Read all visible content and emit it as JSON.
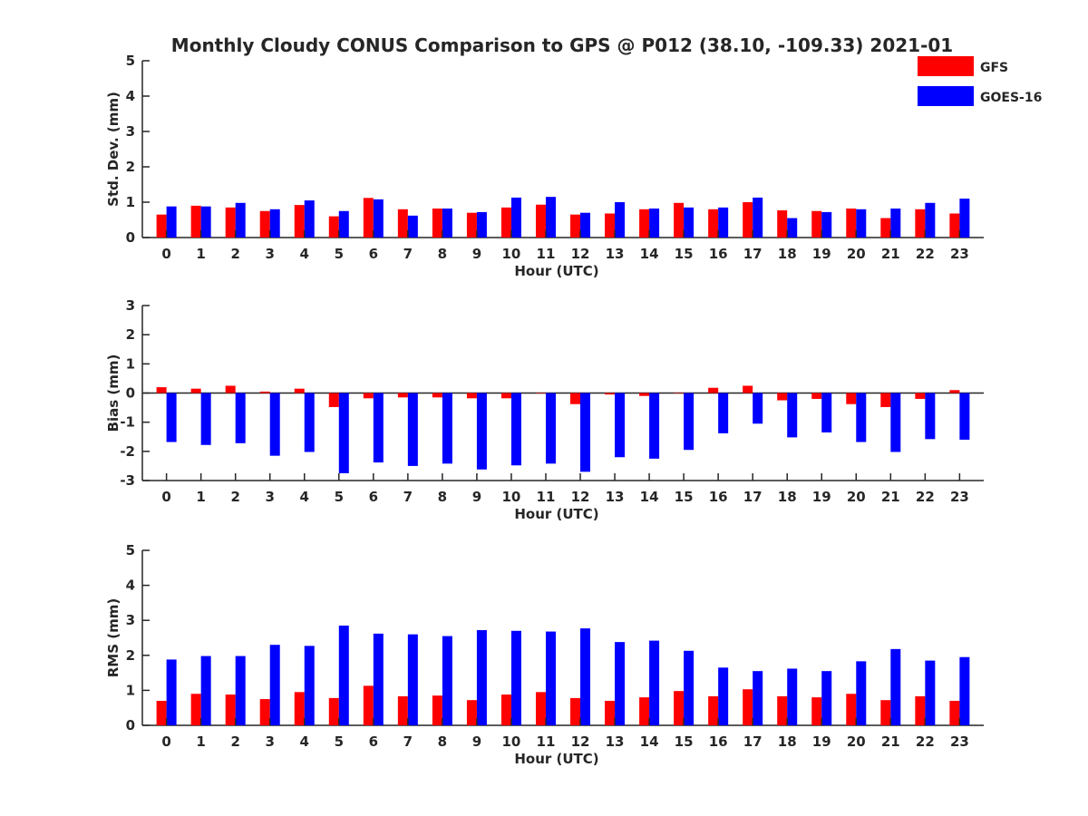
{
  "title": "Monthly Cloudy CONUS Comparison to GPS @ P012 (38.10, -109.33) 2021-01",
  "legend": [
    {
      "name": "GFS",
      "color": "#ff0000"
    },
    {
      "name": "GOES-16",
      "color": "#0000ff"
    }
  ],
  "chart_data": [
    {
      "type": "bar",
      "xlabel": "Hour (UTC)",
      "ylabel": "Std. Dev. (mm)",
      "ylim": [
        0,
        5
      ],
      "yticks": [
        0,
        1,
        2,
        3,
        4,
        5
      ],
      "categories": [
        "0",
        "1",
        "2",
        "3",
        "4",
        "5",
        "6",
        "7",
        "8",
        "9",
        "10",
        "11",
        "12",
        "13",
        "14",
        "15",
        "16",
        "17",
        "18",
        "19",
        "20",
        "21",
        "22",
        "23"
      ],
      "series": [
        {
          "name": "GFS",
          "color": "#ff0000",
          "values": [
            0.65,
            0.9,
            0.85,
            0.75,
            0.92,
            0.6,
            1.12,
            0.8,
            0.82,
            0.7,
            0.85,
            0.93,
            0.65,
            0.68,
            0.8,
            0.98,
            0.8,
            1.0,
            0.77,
            0.75,
            0.82,
            0.55,
            0.8,
            0.68
          ]
        },
        {
          "name": "GOES-16",
          "color": "#0000ff",
          "values": [
            0.88,
            0.88,
            0.98,
            0.8,
            1.05,
            0.75,
            1.08,
            0.62,
            0.82,
            0.72,
            1.13,
            1.15,
            0.7,
            1.0,
            0.82,
            0.85,
            0.85,
            1.13,
            0.55,
            0.72,
            0.8,
            0.82,
            0.98,
            1.1
          ]
        }
      ]
    },
    {
      "type": "bar",
      "xlabel": "Hour (UTC)",
      "ylabel": "Bias (mm)",
      "ylim": [
        -3,
        3
      ],
      "yticks": [
        -3,
        -2,
        -1,
        0,
        1,
        2,
        3
      ],
      "categories": [
        "0",
        "1",
        "2",
        "3",
        "4",
        "5",
        "6",
        "7",
        "8",
        "9",
        "10",
        "11",
        "12",
        "13",
        "14",
        "15",
        "16",
        "17",
        "18",
        "19",
        "20",
        "21",
        "22",
        "23"
      ],
      "series": [
        {
          "name": "GFS",
          "color": "#ff0000",
          "values": [
            0.2,
            0.15,
            0.25,
            0.05,
            0.15,
            -0.48,
            -0.18,
            -0.15,
            -0.15,
            -0.18,
            -0.18,
            0.0,
            -0.38,
            -0.05,
            -0.1,
            0.0,
            0.18,
            0.25,
            -0.25,
            -0.2,
            -0.38,
            -0.48,
            -0.2,
            0.1
          ]
        },
        {
          "name": "GOES-16",
          "color": "#0000ff",
          "values": [
            -1.68,
            -1.78,
            -1.72,
            -2.15,
            -2.02,
            -2.75,
            -2.38,
            -2.5,
            -2.42,
            -2.62,
            -2.48,
            -2.42,
            -2.7,
            -2.2,
            -2.25,
            -1.95,
            -1.38,
            -1.05,
            -1.52,
            -1.35,
            -1.68,
            -2.02,
            -1.58,
            -1.6
          ]
        }
      ]
    },
    {
      "type": "bar",
      "xlabel": "Hour (UTC)",
      "ylabel": "RMS (mm)",
      "ylim": [
        0,
        5
      ],
      "yticks": [
        0,
        1,
        2,
        3,
        4,
        5
      ],
      "categories": [
        "0",
        "1",
        "2",
        "3",
        "4",
        "5",
        "6",
        "7",
        "8",
        "9",
        "10",
        "11",
        "12",
        "13",
        "14",
        "15",
        "16",
        "17",
        "18",
        "19",
        "20",
        "21",
        "22",
        "23"
      ],
      "series": [
        {
          "name": "GFS",
          "color": "#ff0000",
          "values": [
            0.7,
            0.9,
            0.88,
            0.75,
            0.95,
            0.78,
            1.13,
            0.83,
            0.85,
            0.72,
            0.88,
            0.95,
            0.78,
            0.7,
            0.8,
            0.98,
            0.83,
            1.03,
            0.83,
            0.8,
            0.9,
            0.72,
            0.83,
            0.7
          ]
        },
        {
          "name": "GOES-16",
          "color": "#0000ff",
          "values": [
            1.88,
            1.98,
            1.98,
            2.3,
            2.27,
            2.85,
            2.62,
            2.6,
            2.55,
            2.72,
            2.7,
            2.68,
            2.77,
            2.38,
            2.42,
            2.13,
            1.65,
            1.55,
            1.62,
            1.55,
            1.83,
            2.18,
            1.85,
            1.95
          ]
        }
      ]
    }
  ]
}
